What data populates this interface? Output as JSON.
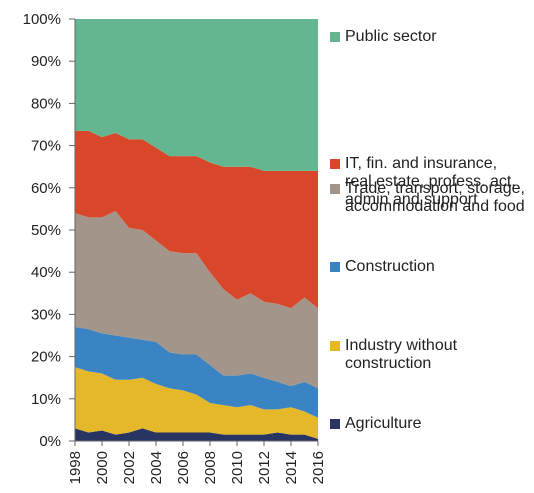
{
  "chart_data": {
    "type": "stacked_area",
    "x": [
      1998,
      1999,
      2000,
      2001,
      2002,
      2003,
      2004,
      2005,
      2006,
      2007,
      2008,
      2009,
      2010,
      2011,
      2012,
      2013,
      2014,
      2015,
      2016
    ],
    "xlim": [
      1998,
      2016
    ],
    "xticks": [
      1998,
      2000,
      2002,
      2004,
      2006,
      2008,
      2010,
      2012,
      2014,
      2016
    ],
    "ylim": [
      0,
      100
    ],
    "yticks": [
      {
        "value": 0,
        "label": "0%"
      },
      {
        "value": 10,
        "label": "10%"
      },
      {
        "value": 20,
        "label": "20%"
      },
      {
        "value": 30,
        "label": "30%"
      },
      {
        "value": 40,
        "label": "40%"
      },
      {
        "value": 50,
        "label": "50%"
      },
      {
        "value": 60,
        "label": "60%"
      },
      {
        "value": 70,
        "label": "70%"
      },
      {
        "value": 80,
        "label": "80%"
      },
      {
        "value": 90,
        "label": "90%"
      },
      {
        "value": 100,
        "label": "100%"
      }
    ],
    "series": [
      {
        "name": "Agriculture",
        "color": "#283462",
        "values": [
          3,
          2,
          2.5,
          1.5,
          2,
          3,
          2,
          2,
          2,
          2,
          2,
          1.5,
          1.5,
          1.5,
          1.5,
          2,
          1.5,
          1.5,
          0.5
        ]
      },
      {
        "name": "Industry without construction",
        "color": "#e5b82a",
        "values": [
          14.5,
          14.5,
          13.5,
          13,
          12.5,
          12,
          11.5,
          10.5,
          10,
          9,
          7,
          7,
          6.5,
          7,
          6,
          5.5,
          6.5,
          5.5,
          5
        ]
      },
      {
        "name": "Construction",
        "color": "#3b84c4",
        "values": [
          9.5,
          10,
          9.5,
          10.5,
          10,
          9,
          10,
          8.5,
          8.5,
          9.5,
          9,
          7,
          7.5,
          7.5,
          7.5,
          6.5,
          5,
          7,
          7
        ]
      },
      {
        "name": "Trade, transport, storage, accommodation and food",
        "color": "#a39589",
        "values": [
          27,
          26.5,
          27.5,
          29.5,
          26,
          26,
          24,
          24,
          24,
          24,
          22,
          20.5,
          18,
          19,
          18,
          18.5,
          18.5,
          20,
          19
        ]
      },
      {
        "name": "IT, fin. and insurance, real estate, profess. act, admin and support",
        "color": "#d9472b",
        "values": [
          19.5,
          20.5,
          19,
          18.5,
          21,
          21.5,
          22,
          22.5,
          23,
          23,
          26,
          29,
          31.5,
          30,
          31,
          31.5,
          32.5,
          30,
          32.5
        ]
      },
      {
        "name": "Public sector",
        "color": "#63b68f",
        "values": [
          26.5,
          26.5,
          28,
          27,
          28.5,
          28.5,
          30.5,
          32.5,
          32.5,
          32.5,
          34,
          35,
          35,
          35,
          36,
          36,
          36,
          36,
          36
        ]
      }
    ]
  }
}
